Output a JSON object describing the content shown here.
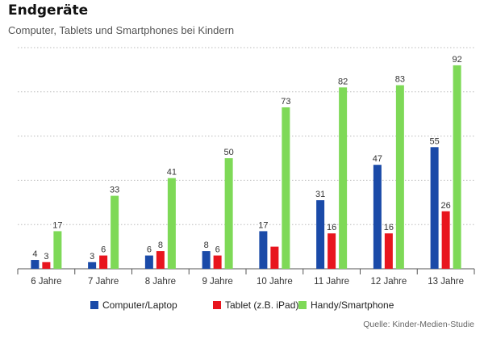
{
  "title": "Endgeräte",
  "subtitle": "Computer, Tablets und Smartphones bei Kindern",
  "source": "Quelle: Kinder-Medien-Studie",
  "colors": {
    "computer": "#1a4aa8",
    "tablet": "#e8151e",
    "phone": "#7ed957",
    "grid": "#bbbbbb",
    "axis": "#555555"
  },
  "chart_data": {
    "type": "bar",
    "title": "Endgeräte",
    "subtitle": "Computer, Tablets und Smartphones bei Kindern",
    "categories": [
      "6 Jahre",
      "7 Jahre",
      "8 Jahre",
      "9 Jahre",
      "10 Jahre",
      "11 Jahre",
      "12 Jahre",
      "13 Jahre"
    ],
    "series": [
      {
        "name": "Computer/Laptop",
        "values": [
          4,
          3,
          6,
          8,
          17,
          31,
          47,
          55
        ],
        "labels": [
          "4",
          "3",
          "6",
          "8",
          "17",
          "31",
          "47",
          "55"
        ]
      },
      {
        "name": "Tablet (z.B. iPad)",
        "values": [
          3,
          6,
          8,
          6,
          10,
          16,
          16,
          26
        ],
        "labels": [
          "3",
          "6",
          "8",
          "6",
          "",
          "16",
          "16",
          "26"
        ]
      },
      {
        "name": "Handy/Smartphone",
        "values": [
          17,
          33,
          41,
          50,
          73,
          82,
          83,
          92
        ],
        "labels": [
          "17",
          "33",
          "41",
          "50",
          "73",
          "82",
          "83",
          "92"
        ]
      }
    ],
    "ylim": [
      0,
      100
    ],
    "grid": true,
    "legend_position": "bottom"
  }
}
